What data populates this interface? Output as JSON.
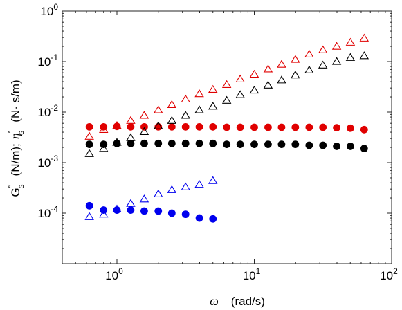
{
  "chart_data": {
    "type": "scatter",
    "title": "",
    "xlabel": {
      "symbol": "ω",
      "unit": "(rad/s)"
    },
    "ylabel": {
      "g_symbol": "G",
      "g_prime": "″",
      "g_sub": "s",
      "g_unit": "(N/m);",
      "eta_symbol": "η",
      "eta_prime": "′",
      "eta_sub": "s",
      "eta_unit": "(N· s/m)"
    },
    "x_scale": "log",
    "y_scale": "log",
    "xlim": [
      0.4,
      100
    ],
    "ylim": [
      1e-05,
      1
    ],
    "grid": false,
    "legend": "none",
    "x_ticks": [
      {
        "value": 1,
        "base": "10",
        "exp": "0"
      },
      {
        "value": 10,
        "base": "10",
        "exp": "1"
      },
      {
        "value": 100,
        "base": "10",
        "exp": "2"
      }
    ],
    "y_ticks": [
      {
        "value": 1,
        "base": "10",
        "exp": "0"
      },
      {
        "value": 0.1,
        "base": "10",
        "exp": "-1"
      },
      {
        "value": 0.01,
        "base": "10",
        "exp": "-2"
      },
      {
        "value": 0.001,
        "base": "10",
        "exp": "-3"
      },
      {
        "value": 0.0001,
        "base": "10",
        "exp": "-4"
      }
    ],
    "series": [
      {
        "marker": "triangle-open",
        "color": "#e00000",
        "x": [
          0.63,
          0.8,
          1.0,
          1.26,
          1.58,
          2.0,
          2.51,
          3.16,
          3.98,
          5.0,
          6.3,
          7.9,
          10.0,
          12.6,
          15.8,
          19.9,
          25.1,
          31.6,
          39.8,
          50.1,
          63.1
        ],
        "y": [
          0.0033,
          0.0045,
          0.0054,
          0.0068,
          0.0086,
          0.011,
          0.014,
          0.018,
          0.023,
          0.028,
          0.035,
          0.045,
          0.056,
          0.071,
          0.088,
          0.11,
          0.14,
          0.17,
          0.2,
          0.24,
          0.29
        ]
      },
      {
        "marker": "circle-filled",
        "color": "#e00000",
        "x": [
          0.63,
          0.8,
          1.0,
          1.26,
          1.58,
          2.0,
          2.51,
          3.16,
          3.98,
          5.0,
          6.3,
          7.9,
          10.0,
          12.6,
          15.8,
          19.9,
          25.1,
          31.6,
          39.8,
          50.1,
          63.1
        ],
        "y": [
          0.0051,
          0.0051,
          0.0052,
          0.0051,
          0.0051,
          0.0051,
          0.0051,
          0.0051,
          0.0051,
          0.0051,
          0.005,
          0.005,
          0.005,
          0.005,
          0.005,
          0.005,
          0.005,
          0.005,
          0.0049,
          0.0048,
          0.0045
        ]
      },
      {
        "marker": "triangle-open",
        "color": "#000000",
        "x": [
          0.63,
          0.8,
          1.0,
          1.26,
          1.58,
          2.0,
          2.51,
          3.16,
          3.98,
          5.0,
          6.3,
          7.9,
          10.0,
          12.6,
          15.8,
          19.9,
          25.1,
          31.6,
          39.8,
          50.1,
          63.1
        ],
        "y": [
          0.0015,
          0.0019,
          0.0025,
          0.0031,
          0.0041,
          0.0053,
          0.0068,
          0.0086,
          0.011,
          0.013,
          0.017,
          0.022,
          0.027,
          0.034,
          0.043,
          0.054,
          0.068,
          0.085,
          0.1,
          0.12,
          0.13
        ]
      },
      {
        "marker": "circle-filled",
        "color": "#000000",
        "x": [
          0.63,
          0.8,
          1.0,
          1.26,
          1.58,
          2.0,
          2.51,
          3.16,
          3.98,
          5.0,
          6.3,
          7.9,
          10.0,
          12.6,
          15.8,
          19.9,
          25.1,
          31.6,
          39.8,
          50.1,
          63.1
        ],
        "y": [
          0.0023,
          0.0023,
          0.0024,
          0.0024,
          0.0024,
          0.0024,
          0.0024,
          0.0024,
          0.0024,
          0.0024,
          0.0023,
          0.0023,
          0.0023,
          0.0023,
          0.0023,
          0.0023,
          0.0022,
          0.0022,
          0.0021,
          0.0021,
          0.0019
        ]
      },
      {
        "marker": "triangle-open",
        "color": "#0000ee",
        "x": [
          0.63,
          0.8,
          1.0,
          1.26,
          1.58,
          2.0,
          2.51,
          3.16,
          3.98,
          5.0
        ],
        "y": [
          8.5e-05,
          9.5e-05,
          0.00012,
          0.000155,
          0.00019,
          0.00024,
          0.00029,
          0.00033,
          0.00037,
          0.00044
        ]
      },
      {
        "marker": "circle-filled",
        "color": "#0000ee",
        "x": [
          0.63,
          0.8,
          1.0,
          1.26,
          1.58,
          2.0,
          2.51,
          3.16,
          3.98,
          5.0
        ],
        "y": [
          0.00014,
          0.000115,
          0.000115,
          0.000115,
          0.00011,
          0.00011,
          0.0001,
          9.5e-05,
          8e-05,
          7.7e-05
        ]
      }
    ]
  }
}
